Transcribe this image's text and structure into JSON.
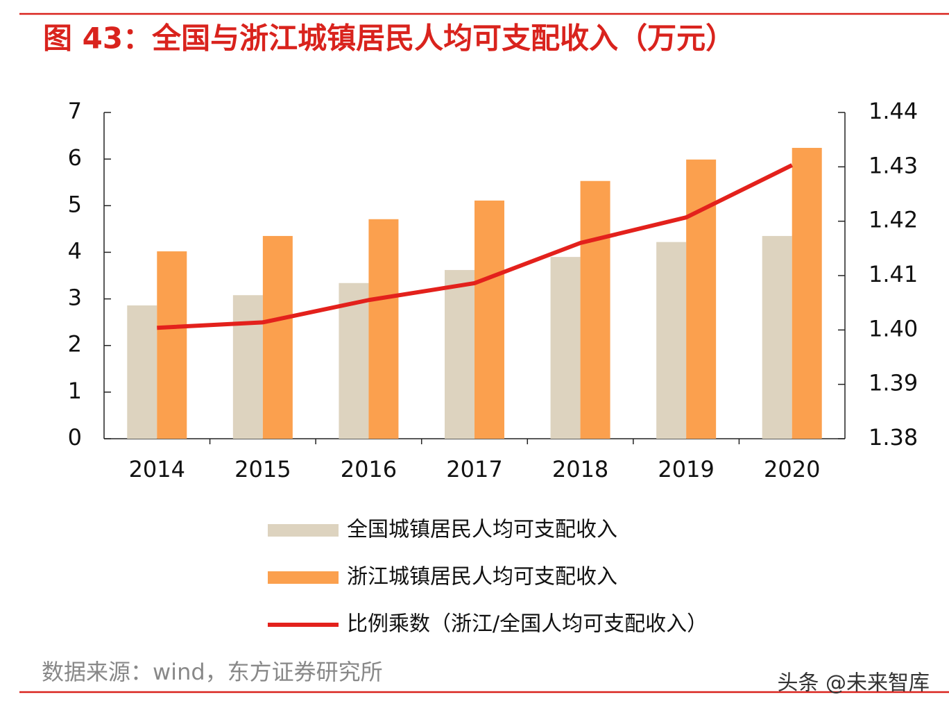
{
  "chart_data": {
    "type": "bar-line",
    "title": "图 43：全国与浙江城镇居民人均可支配收入（万元）",
    "source": "数据来源：wind，东方证券研究所",
    "watermark": "头条 @未来智库",
    "categories": [
      "2014",
      "2015",
      "2016",
      "2017",
      "2018",
      "2019",
      "2020"
    ],
    "series": [
      {
        "name": "全国城镇居民人均可支配收入",
        "type": "bar",
        "color": "#ddd3bf",
        "values": [
          2.86,
          3.08,
          3.34,
          3.62,
          3.9,
          4.22,
          4.35
        ]
      },
      {
        "name": "浙江城镇居民人均可支配收入",
        "type": "bar",
        "color": "#fba04e",
        "values": [
          4.02,
          4.35,
          4.71,
          5.11,
          5.53,
          5.99,
          6.24
        ]
      },
      {
        "name": "比例乘数（浙江/全国人均可支配收入）",
        "type": "line",
        "axis": "y2",
        "color": "#e3211c",
        "values": [
          1.4004,
          1.4014,
          1.4055,
          1.4086,
          1.416,
          1.4207,
          1.4303
        ]
      }
    ],
    "ylim": [
      0,
      7
    ],
    "yticks": [
      0,
      1,
      2,
      3,
      4,
      5,
      6,
      7
    ],
    "y2lim": [
      1.38,
      1.44
    ],
    "y2ticks": [
      1.38,
      1.39,
      {
        "value": 1.4,
        "label": "1.40"
      },
      1.41,
      1.42,
      1.43,
      1.44
    ],
    "grid": false,
    "legend": "bottom"
  }
}
